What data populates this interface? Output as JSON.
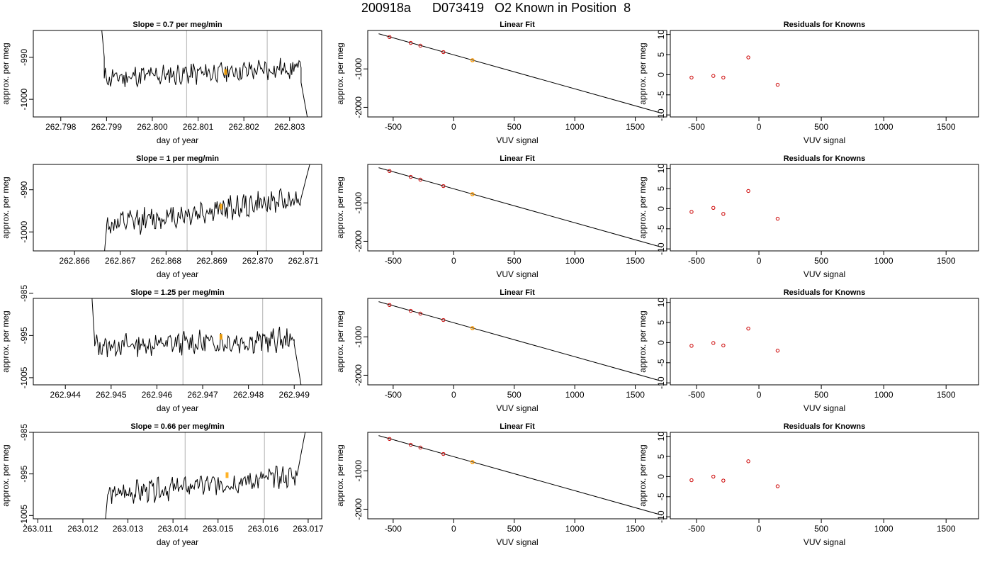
{
  "page": {
    "title": "200918a      D073419   O2 Known in Position  8"
  },
  "styles": {
    "trace_color": "#000000",
    "frame_color": "#000000",
    "vline_color": "#bfbfbf",
    "highlight_color": "#ffa500",
    "point_color": "#cc0000"
  },
  "chart_data": [
    {
      "type": "line",
      "panel": "time-1",
      "title": "Slope =  0.7  per meg/min",
      "xlabel": "day of year",
      "ylabel": "approx. per meg",
      "xlim": [
        262.7974,
        262.8037
      ],
      "ylim": [
        -1004.2,
        -983.6
      ],
      "xticks": [
        "262.798",
        "262.799",
        "262.800",
        "262.801",
        "262.802",
        "262.803"
      ],
      "xtick_values": [
        262.798,
        262.799,
        262.8,
        262.801,
        262.802,
        262.803
      ],
      "yticks": [
        "-990",
        "-1000"
      ],
      "ytick_values": [
        -990,
        -1000
      ],
      "vlines": [
        262.80075,
        262.80251
      ],
      "segments": [
        {
          "x0": 262.79885,
          "x1": 262.79895,
          "y0": -978.0,
          "y1": -990.0,
          "seed": 1
        },
        {
          "x0": 262.79895,
          "x1": 262.80325,
          "y0": -995.0,
          "y1": -992.5,
          "seed": 11
        },
        {
          "x0": 262.80325,
          "x1": 262.80348,
          "y0": -996.0,
          "y1": -1010.0,
          "seed": 21
        }
      ],
      "noise": 2.2,
      "highlight": {
        "x": 262.8016,
        "y": -993.5
      }
    },
    {
      "type": "line",
      "panel": "time-2",
      "title": "Slope =  1  per meg/min",
      "xlabel": "day of year",
      "ylabel": "approx. per meg",
      "xlim": [
        262.8651,
        262.8714
      ],
      "ylim": [
        -1004.5,
        -984.0
      ],
      "xticks": [
        "262.866",
        "262.867",
        "262.868",
        "262.869",
        "262.870",
        "262.871"
      ],
      "xtick_values": [
        262.866,
        262.867,
        262.868,
        262.869,
        262.87,
        262.871
      ],
      "yticks": [
        "-990",
        "-1000"
      ],
      "ytick_values": [
        -990,
        -1000
      ],
      "vlines": [
        262.86846,
        262.87019
      ],
      "segments": [
        {
          "x0": 262.86663,
          "x1": 262.8667,
          "y0": -1008.0,
          "y1": -999.0,
          "seed": 2
        },
        {
          "x0": 262.8667,
          "x1": 262.87095,
          "y0": -998.5,
          "y1": -992.0,
          "seed": 12
        },
        {
          "x0": 262.87095,
          "x1": 262.87128,
          "y0": -992.0,
          "y1": -978.0,
          "seed": 22
        }
      ],
      "noise": 2.4,
      "highlight": {
        "x": 262.8692,
        "y": -994.0
      }
    },
    {
      "type": "line",
      "panel": "time-3",
      "title": "Slope =  1.25  per meg/min",
      "xlabel": "day of year",
      "ylabel": "approx. per meg",
      "xlim": [
        262.9433,
        262.9496
      ],
      "ylim": [
        -1006.7,
        -986.2
      ],
      "xticks": [
        "262.944",
        "262.945",
        "262.946",
        "262.947",
        "262.948",
        "262.949"
      ],
      "xtick_values": [
        262.944,
        262.945,
        262.946,
        262.947,
        262.948,
        262.949
      ],
      "yticks": [
        "-985",
        "-995",
        "-1005"
      ],
      "ytick_values": [
        -985,
        -995,
        -1005
      ],
      "vlines": [
        262.94657,
        262.94831
      ],
      "segments": [
        {
          "x0": 262.94456,
          "x1": 262.94464,
          "y0": -982.0,
          "y1": -996.5,
          "seed": 3
        },
        {
          "x0": 262.94464,
          "x1": 262.949,
          "y0": -997.5,
          "y1": -996.0,
          "seed": 13
        },
        {
          "x0": 262.949,
          "x1": 262.94923,
          "y0": -997.0,
          "y1": -1012.0,
          "seed": 23
        }
      ],
      "noise": 2.3,
      "highlight": {
        "x": 262.9474,
        "y": -995.3
      }
    },
    {
      "type": "line",
      "panel": "time-4",
      "title": "Slope =  0.66  per meg/min",
      "xlabel": "day of year",
      "ylabel": "approx. per meg",
      "xlim": [
        263.0109,
        263.0173
      ],
      "ylim": [
        -1005.8,
        -985.0
      ],
      "xticks": [
        "263.011",
        "263.012",
        "263.013",
        "263.014",
        "263.015",
        "263.016",
        "263.017"
      ],
      "xtick_values": [
        263.011,
        263.012,
        263.013,
        263.014,
        263.015,
        263.016,
        263.017
      ],
      "yticks": [
        "-985",
        "-995",
        "-1005"
      ],
      "ytick_values": [
        -985,
        -995,
        -1005
      ],
      "vlines": [
        263.01427,
        263.01603
      ],
      "segments": [
        {
          "x0": 263.01247,
          "x1": 263.01255,
          "y0": -1010.0,
          "y1": -1000.0,
          "seed": 4
        },
        {
          "x0": 263.01255,
          "x1": 263.01675,
          "y0": -1000.0,
          "y1": -995.5,
          "seed": 14
        },
        {
          "x0": 263.01675,
          "x1": 263.01702,
          "y0": -995.5,
          "y1": -980.0,
          "seed": 24
        }
      ],
      "noise": 2.2,
      "highlight": {
        "x": 263.0152,
        "y": -995.3
      }
    },
    {
      "type": "scatter",
      "panel": "fit-1",
      "title": "Linear Fit",
      "xlabel": "VUV signal",
      "ylabel": "approx. per meg",
      "xlim": [
        -710,
        1760
      ],
      "ylim": [
        -2250,
        0
      ],
      "xticks": [
        "-500",
        "0",
        "500",
        "1000",
        "1500"
      ],
      "xtick_values": [
        -500,
        0,
        500,
        1000,
        1500
      ],
      "yticks": [
        "-1000",
        "-2000"
      ],
      "ytick_values": [
        -1000,
        -2000
      ],
      "line": {
        "x": [
          -620,
          1720
        ],
        "y": [
          -85,
          -2155
        ]
      },
      "points": {
        "x": [
          -530,
          -355,
          -275,
          -85,
          155
        ],
        "y": [
          -172,
          -324,
          -396,
          -563,
          -773
        ]
      },
      "known": {
        "x": 155,
        "y": -777
      }
    },
    {
      "type": "scatter",
      "panel": "fit-2",
      "title": "Linear Fit",
      "xlabel": "VUV signal",
      "ylabel": "approx. per meg",
      "xlim": [
        -710,
        1760
      ],
      "ylim": [
        -2250,
        0
      ],
      "xticks": [
        "-500",
        "0",
        "500",
        "1000",
        "1500"
      ],
      "xtick_values": [
        -500,
        0,
        500,
        1000,
        1500
      ],
      "yticks": [
        "-1000",
        "-2000"
      ],
      "ytick_values": [
        -1000,
        -2000
      ],
      "line": {
        "x": [
          -620,
          1720
        ],
        "y": [
          -85,
          -2155
        ]
      },
      "points": {
        "x": [
          -530,
          -355,
          -275,
          -85,
          155
        ],
        "y": [
          -172,
          -324,
          -396,
          -563,
          -773
        ]
      },
      "known": {
        "x": 155,
        "y": -777
      }
    },
    {
      "type": "scatter",
      "panel": "fit-3",
      "title": "Linear Fit",
      "xlabel": "VUV signal",
      "ylabel": "approx. per meg",
      "xlim": [
        -710,
        1760
      ],
      "ylim": [
        -2250,
        0
      ],
      "xticks": [
        "-500",
        "0",
        "500",
        "1000",
        "1500"
      ],
      "xtick_values": [
        -500,
        0,
        500,
        1000,
        1500
      ],
      "yticks": [
        "-1000",
        "-2000"
      ],
      "ytick_values": [
        -1000,
        -2000
      ],
      "line": {
        "x": [
          -620,
          1720
        ],
        "y": [
          -85,
          -2155
        ]
      },
      "points": {
        "x": [
          -530,
          -355,
          -275,
          -85,
          155
        ],
        "y": [
          -172,
          -324,
          -396,
          -563,
          -773
        ]
      },
      "known": {
        "x": 155,
        "y": -777
      }
    },
    {
      "type": "scatter",
      "panel": "fit-4",
      "title": "Linear Fit",
      "xlabel": "VUV signal",
      "ylabel": "approx. per meg",
      "xlim": [
        -710,
        1760
      ],
      "ylim": [
        -2250,
        0
      ],
      "xticks": [
        "-500",
        "0",
        "500",
        "1000",
        "1500"
      ],
      "xtick_values": [
        -500,
        0,
        500,
        1000,
        1500
      ],
      "yticks": [
        "-1000",
        "-2000"
      ],
      "ytick_values": [
        -1000,
        -2000
      ],
      "line": {
        "x": [
          -620,
          1720
        ],
        "y": [
          -85,
          -2155
        ]
      },
      "points": {
        "x": [
          -530,
          -355,
          -275,
          -85,
          155
        ],
        "y": [
          -172,
          -324,
          -396,
          -563,
          -773
        ]
      },
      "known": {
        "x": 155,
        "y": -777
      }
    },
    {
      "type": "scatter",
      "panel": "resid-1",
      "title": "Residuals for Knowns",
      "xlabel": "VUV signal",
      "ylabel": "approx. per meg",
      "xlim": [
        -710,
        1760
      ],
      "ylim": [
        -10.5,
        11.0
      ],
      "xticks": [
        "-500",
        "0",
        "500",
        "1000",
        "1500"
      ],
      "xtick_values": [
        -500,
        0,
        500,
        1000,
        1500
      ],
      "yticks": [
        "-10",
        "-5",
        "0",
        "5",
        "10"
      ],
      "ytick_values": [
        -10,
        -5,
        0,
        5,
        10
      ],
      "points": {
        "x": [
          -540,
          -365,
          -285,
          -85,
          150
        ],
        "y": [
          -0.7,
          -0.3,
          -0.7,
          4.3,
          -2.5
        ]
      }
    },
    {
      "type": "scatter",
      "panel": "resid-2",
      "title": "Residuals for Knowns",
      "xlabel": "VUV signal",
      "ylabel": "approx. per meg",
      "xlim": [
        -710,
        1760
      ],
      "ylim": [
        -10.5,
        11.0
      ],
      "xticks": [
        "-500",
        "0",
        "500",
        "1000",
        "1500"
      ],
      "xtick_values": [
        -500,
        0,
        500,
        1000,
        1500
      ],
      "yticks": [
        "-10",
        "-5",
        "0",
        "5",
        "10"
      ],
      "ytick_values": [
        -10,
        -5,
        0,
        5,
        10
      ],
      "points": {
        "x": [
          -540,
          -365,
          -285,
          -85,
          150
        ],
        "y": [
          -0.8,
          0.2,
          -1.3,
          4.4,
          -2.5
        ]
      }
    },
    {
      "type": "scatter",
      "panel": "resid-3",
      "title": "Residuals for Knowns",
      "xlabel": "VUV signal",
      "ylabel": "approx. per meg",
      "xlim": [
        -710,
        1760
      ],
      "ylim": [
        -10.5,
        11.0
      ],
      "xticks": [
        "-500",
        "0",
        "500",
        "1000",
        "1500"
      ],
      "xtick_values": [
        -500,
        0,
        500,
        1000,
        1500
      ],
      "yticks": [
        "-10",
        "-5",
        "0",
        "5",
        "10"
      ],
      "ytick_values": [
        -10,
        -5,
        0,
        5,
        10
      ],
      "points": {
        "x": [
          -540,
          -365,
          -285,
          -85,
          150
        ],
        "y": [
          -0.8,
          -0.1,
          -0.7,
          3.5,
          -2.0
        ]
      }
    },
    {
      "type": "scatter",
      "panel": "resid-4",
      "title": "Residuals for Knowns",
      "xlabel": "VUV signal",
      "ylabel": "approx. per meg",
      "xlim": [
        -710,
        1760
      ],
      "ylim": [
        -10.5,
        11.0
      ],
      "xticks": [
        "-500",
        "0",
        "500",
        "1000",
        "1500"
      ],
      "xtick_values": [
        -500,
        0,
        500,
        1000,
        1500
      ],
      "yticks": [
        "-10",
        "-5",
        "0",
        "5",
        "10"
      ],
      "ytick_values": [
        -10,
        -5,
        0,
        5,
        10
      ],
      "points": {
        "x": [
          -540,
          -365,
          -285,
          -85,
          150
        ],
        "y": [
          -0.9,
          0.0,
          -1.0,
          3.8,
          -2.4
        ]
      }
    }
  ]
}
